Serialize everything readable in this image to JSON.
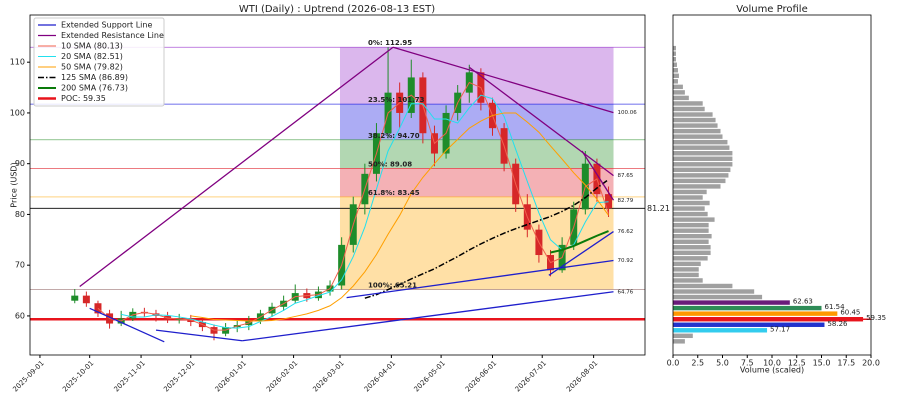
{
  "chart_data": [
    {
      "type": "candlestick",
      "title": "WTI (Daily) : Uptrend (2026-08-13 EST)",
      "y_label": "Price (USD)",
      "xlim": [
        "2025-08-26",
        "2026-09-01"
      ],
      "ylim": [
        52.3,
        119.3
      ],
      "xticks": [
        "2025-09-01",
        "2025-10-01",
        "2025-11-01",
        "2025-12-01",
        "2026-01-01",
        "2026-02-01",
        "2026-03-01",
        "2026-04-01",
        "2026-05-01",
        "2026-06-01",
        "2026-07-01",
        "2026-08-01"
      ],
      "yticks": [
        60,
        70,
        80,
        90,
        100,
        110
      ],
      "up_color": "#1e8c2a",
      "down_color": "#d62728",
      "legend": "upper left",
      "x": [
        "2025-09-22",
        "2025-09-29",
        "2025-10-06",
        "2025-10-13",
        "2025-10-20",
        "2025-10-27",
        "2025-11-03",
        "2025-11-10",
        "2025-11-17",
        "2025-11-24",
        "2025-12-01",
        "2025-12-08",
        "2025-12-15",
        "2025-12-22",
        "2025-12-29",
        "2026-01-05",
        "2026-01-12",
        "2026-01-19",
        "2026-01-26",
        "2026-02-02",
        "2026-02-09",
        "2026-02-16",
        "2026-02-23",
        "2026-03-02",
        "2026-03-09",
        "2026-03-16",
        "2026-03-23",
        "2026-03-30",
        "2026-04-06",
        "2026-04-13",
        "2026-04-20",
        "2026-04-27",
        "2026-05-04",
        "2026-05-11",
        "2026-05-18",
        "2026-05-25",
        "2026-06-01",
        "2026-06-08",
        "2026-06-15",
        "2026-06-22",
        "2026-06-29",
        "2026-07-06",
        "2026-07-13",
        "2026-07-20",
        "2026-07-27",
        "2026-08-03",
        "2026-08-10"
      ],
      "open": [
        63.0,
        64.0,
        62.5,
        60.5,
        58.5,
        59.5,
        60.8,
        60.5,
        60.0,
        59.2,
        59.5,
        58.8,
        57.8,
        56.5,
        57.8,
        58.2,
        59.0,
        60.5,
        61.8,
        63.0,
        64.5,
        63.5,
        64.8,
        66.0,
        74.0,
        82.0,
        88.0,
        96.0,
        104.0,
        100.0,
        107.0,
        96.0,
        92.0,
        100.0,
        104.0,
        108.0,
        102.0,
        97.0,
        90.0,
        82.0,
        77.0,
        72.0,
        69.0,
        74.0,
        81.0,
        90.0,
        84.0
      ],
      "high": [
        65.3,
        64.8,
        63.0,
        61.2,
        61.0,
        61.5,
        61.6,
        61.2,
        60.8,
        60.4,
        60.2,
        59.4,
        58.3,
        58.6,
        59.0,
        60.0,
        61.2,
        62.6,
        64.0,
        66.2,
        65.4,
        65.8,
        67.0,
        75.5,
        83.5,
        90.0,
        98.0,
        112.95,
        106.0,
        110.5,
        108.0,
        97.5,
        101.5,
        105.5,
        109.5,
        108.8,
        103.0,
        98.0,
        91.0,
        84.0,
        78.0,
        73.0,
        75.5,
        82.5,
        92.5,
        91.0,
        85.5
      ],
      "low": [
        62.5,
        61.8,
        59.8,
        57.5,
        58.0,
        59.0,
        59.8,
        58.9,
        58.6,
        58.5,
        58.0,
        57.0,
        55.2,
        56.0,
        56.8,
        57.2,
        58.4,
        59.8,
        61.0,
        62.5,
        62.8,
        63.0,
        64.0,
        65.2,
        72.5,
        80.0,
        86.5,
        95.0,
        97.0,
        99.0,
        94.0,
        89.5,
        91.0,
        98.5,
        102.0,
        100.5,
        95.5,
        88.5,
        80.5,
        75.5,
        70.5,
        67.8,
        68.5,
        73.0,
        80.0,
        82.5,
        79.5
      ],
      "close": [
        64.0,
        62.5,
        60.5,
        58.5,
        59.5,
        60.8,
        60.5,
        60.0,
        59.2,
        59.5,
        58.8,
        57.8,
        56.5,
        57.8,
        58.2,
        59.0,
        60.5,
        61.8,
        63.0,
        64.5,
        63.5,
        64.8,
        66.0,
        74.0,
        82.0,
        88.0,
        96.0,
        104.0,
        100.0,
        107.0,
        96.0,
        92.0,
        100.0,
        104.0,
        108.0,
        102.0,
        97.0,
        90.0,
        82.0,
        77.0,
        72.0,
        69.0,
        74.0,
        81.0,
        90.0,
        84.0,
        81.21
      ],
      "trendlines": [
        {
          "name": "Extended Support Line",
          "color": "#1f1fcc",
          "segments": [
            {
              "x": [
                "2025-10-01",
                "2025-11-15"
              ],
              "y": [
                61.5,
                54.9
              ]
            },
            {
              "x": [
                "2025-11-10",
                "2026-01-01"
              ],
              "y": [
                57.2,
                55.1
              ]
            },
            {
              "x": [
                "2026-01-01",
                "2026-08-13"
              ],
              "y": [
                55.1,
                64.76
              ],
              "labeled": true
            },
            {
              "x": [
                "2026-03-05",
                "2026-08-13"
              ],
              "y": [
                63.6,
                70.92
              ],
              "labeled": true
            },
            {
              "x": [
                "2026-07-05",
                "2026-08-13"
              ],
              "y": [
                68.0,
                76.62
              ],
              "labeled": true
            }
          ]
        },
        {
          "name": "Extended Resistance Line",
          "color": "#800080",
          "segments": [
            {
              "x": [
                "2025-09-25",
                "2026-04-02"
              ],
              "y": [
                65.8,
                112.95
              ]
            },
            {
              "x": [
                "2026-04-02",
                "2026-08-13"
              ],
              "y": [
                112.95,
                100.06
              ],
              "labeled": true
            },
            {
              "x": [
                "2026-05-18",
                "2026-08-13"
              ],
              "y": [
                109.0,
                87.65
              ],
              "labeled": true
            },
            {
              "x": [
                "2026-07-25",
                "2026-08-13"
              ],
              "y": [
                92.5,
                82.79
              ],
              "labeled": true
            }
          ]
        }
      ],
      "series": [
        {
          "name": "10 SMA (80.13)",
          "color": "#f0604d",
          "width": 1,
          "values": [
            null,
            null,
            61.5,
            59.5,
            59.0,
            60.2,
            60.7,
            60.3,
            59.6,
            59.4,
            59.2,
            58.3,
            57.2,
            57.2,
            58.0,
            58.6,
            59.8,
            61.2,
            62.4,
            63.8,
            64.0,
            64.2,
            65.4,
            70.0,
            78.0,
            85.0,
            92.0,
            100.0,
            102.0,
            103.5,
            101.5,
            94.0,
            96.0,
            102.0,
            106.0,
            105.0,
            99.5,
            93.5,
            86.0,
            79.5,
            74.5,
            70.5,
            71.5,
            77.5,
            85.5,
            87.0,
            80.13
          ]
        },
        {
          "name": "20 SMA (82.51)",
          "color": "#22e0ee",
          "width": 1,
          "values": [
            null,
            null,
            null,
            null,
            60.3,
            59.8,
            59.8,
            60.2,
            60.1,
            59.8,
            59.4,
            58.8,
            58.2,
            57.7,
            57.6,
            57.9,
            58.9,
            59.9,
            61.1,
            62.5,
            63.2,
            64.0,
            64.7,
            67.1,
            71.7,
            77.5,
            85.0,
            92.5,
            97.0,
            101.8,
            101.8,
            98.8,
            98.8,
            98.0,
            101.0,
            103.5,
            102.8,
            99.3,
            92.8,
            86.5,
            80.3,
            75.0,
            73.0,
            74.0,
            78.5,
            82.3,
            82.51
          ]
        },
        {
          "name": "50 SMA (79.82)",
          "color": "#ff9f00",
          "width": 1,
          "values": [
            null,
            null,
            null,
            null,
            null,
            null,
            null,
            null,
            null,
            null,
            60.0,
            59.7,
            59.3,
            59.2,
            59.1,
            59.0,
            59.0,
            59.1,
            59.4,
            59.9,
            60.4,
            61.1,
            62.0,
            63.6,
            65.9,
            68.7,
            72.1,
            76.1,
            79.8,
            84.1,
            87.3,
            90.0,
            92.6,
            94.8,
            97.0,
            98.4,
            99.5,
            100.0,
            100.0,
            98.2,
            96.2,
            93.5,
            90.9,
            88.2,
            85.8,
            83.0,
            79.82
          ]
        },
        {
          "name": "125 SMA (86.89)",
          "color": "#000000",
          "width": 1.5,
          "dash": "dashdot",
          "values": [
            null,
            null,
            null,
            null,
            null,
            null,
            null,
            null,
            null,
            null,
            null,
            null,
            null,
            null,
            null,
            null,
            null,
            null,
            null,
            null,
            null,
            null,
            null,
            null,
            null,
            63.5,
            64.2,
            65.2,
            66.2,
            67.3,
            68.3,
            69.3,
            70.5,
            71.7,
            73.0,
            74.2,
            75.3,
            76.3,
            77.2,
            78.0,
            78.8,
            79.6,
            80.6,
            81.8,
            83.3,
            85.2,
            86.89
          ]
        },
        {
          "name": "200 SMA (76.73)",
          "color": "#0a7a0a",
          "width": 2,
          "values": [
            null,
            null,
            null,
            null,
            null,
            null,
            null,
            null,
            null,
            null,
            null,
            null,
            null,
            null,
            null,
            null,
            null,
            null,
            null,
            null,
            null,
            null,
            null,
            null,
            null,
            null,
            null,
            null,
            null,
            null,
            null,
            null,
            null,
            null,
            null,
            null,
            null,
            null,
            null,
            null,
            null,
            72.5,
            73.0,
            73.8,
            74.8,
            75.8,
            76.73
          ]
        }
      ],
      "poc": {
        "name": "POC: 59.35",
        "value": 59.35,
        "color": "#e8141c"
      },
      "price_line": {
        "value": 81.21,
        "color": "#000000"
      },
      "fib_range": [
        "2026-03-01",
        "2026-08-13"
      ],
      "fib_levels": [
        {
          "label": "0%: 112.95",
          "value": 112.95,
          "color": "#9932cc"
        },
        {
          "label": "23.5%: 101.73",
          "value": 101.73,
          "color": "#1010e0"
        },
        {
          "label": "38.2%: 94.70",
          "value": 94.7,
          "color": "#228b22"
        },
        {
          "label": "50%: 89.08",
          "value": 89.08,
          "color": "#e0202a"
        },
        {
          "label": "61.8%: 83.45",
          "value": 83.45,
          "color": "#ffa500"
        },
        {
          "label": "100%: 65.21",
          "value": 65.21,
          "color": "#9a7070"
        }
      ]
    },
    {
      "type": "hbar",
      "title": "Volume Profile",
      "x_label": "Volume (scaled)",
      "color": "#a0a0a0",
      "xlim": [
        0,
        20
      ],
      "ylim": [
        52.3,
        119.3
      ],
      "xticks": [
        {
          "value": 0,
          "label": "0.0"
        },
        {
          "value": 2.5,
          "label": "2.5"
        },
        {
          "value": 5,
          "label": "5.0"
        },
        {
          "value": 7.5,
          "label": "7.5"
        },
        {
          "value": 10,
          "label": "10.0"
        },
        {
          "value": 12.5,
          "label": "12.5"
        },
        {
          "value": 15,
          "label": "15.0"
        },
        {
          "value": 17.5,
          "label": "17.5"
        },
        {
          "value": 20,
          "label": "20.0"
        }
      ],
      "categories": [
        54.99,
        56.08,
        57.17,
        58.26,
        59.35,
        60.45,
        61.54,
        62.63,
        63.72,
        64.81,
        65.9,
        66.99,
        68.08,
        69.17,
        70.26,
        71.35,
        72.44,
        73.53,
        74.62,
        75.71,
        76.8,
        77.89,
        78.98,
        80.07,
        81.16,
        82.25,
        83.34,
        84.43,
        85.52,
        86.61,
        87.7,
        88.79,
        89.88,
        90.97,
        92.06,
        93.15,
        94.24,
        95.33,
        96.42,
        97.51,
        98.6,
        99.69,
        100.78,
        101.87,
        102.96,
        104.05,
        105.14,
        106.23,
        107.32,
        108.41,
        109.5,
        110.59,
        111.68,
        112.77
      ],
      "values": [
        1.2,
        2.0,
        9.5,
        15.3,
        19.2,
        16.6,
        15.0,
        11.8,
        9.0,
        8.2,
        6.0,
        3.0,
        2.6,
        2.6,
        2.8,
        3.5,
        3.8,
        3.8,
        3.6,
        3.9,
        3.6,
        3.6,
        4.2,
        3.5,
        3.2,
        3.7,
        3.0,
        3.4,
        4.8,
        5.3,
        5.6,
        5.8,
        6.0,
        6.0,
        6.0,
        5.7,
        5.5,
        5.0,
        4.8,
        4.5,
        4.3,
        4.0,
        3.2,
        3.0,
        1.6,
        1.2,
        1.0,
        0.5,
        0.6,
        0.5,
        0.4,
        0.3,
        0.3,
        0.3
      ],
      "colors": [
        "#a0a0a0",
        "#a0a0a0",
        "#33ccee",
        "#2233cc",
        "#e8141c",
        "#ff9800",
        "#2e8b57",
        "#6a1b7a",
        "#a0a0a0",
        "#a0a0a0",
        "#a0a0a0",
        "#a0a0a0",
        "#a0a0a0",
        "#a0a0a0",
        "#a0a0a0",
        "#a0a0a0",
        "#a0a0a0",
        "#a0a0a0",
        "#a0a0a0",
        "#a0a0a0",
        "#a0a0a0",
        "#a0a0a0",
        "#a0a0a0",
        "#a0a0a0",
        "#a0a0a0",
        "#a0a0a0",
        "#a0a0a0",
        "#a0a0a0",
        "#a0a0a0",
        "#a0a0a0",
        "#a0a0a0",
        "#a0a0a0",
        "#a0a0a0",
        "#a0a0a0",
        "#a0a0a0",
        "#a0a0a0",
        "#a0a0a0",
        "#a0a0a0",
        "#a0a0a0",
        "#a0a0a0",
        "#a0a0a0",
        "#a0a0a0",
        "#a0a0a0",
        "#a0a0a0",
        "#a0a0a0",
        "#a0a0a0",
        "#a0a0a0",
        "#a0a0a0",
        "#a0a0a0",
        "#a0a0a0",
        "#a0a0a0",
        "#a0a0a0",
        "#a0a0a0",
        "#a0a0a0"
      ]
    }
  ]
}
